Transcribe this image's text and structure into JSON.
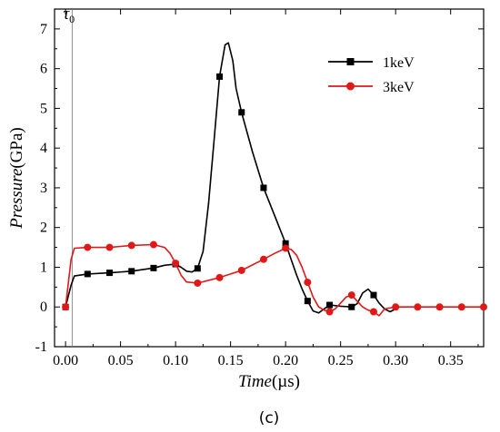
{
  "chart_data": {
    "type": "line",
    "title": "",
    "xlabel": "Time",
    "xlabel_unit": "(µs)",
    "ylabel": "Pressure",
    "ylabel_unit": "(GPa)",
    "panel_label": "(c)",
    "marker_label": "τ",
    "marker_label_sub": "0",
    "marker_x": 0.006,
    "xlim": [
      -0.01,
      0.38
    ],
    "ylim": [
      -1,
      7.5
    ],
    "xticks": [
      0.0,
      0.05,
      0.1,
      0.15,
      0.2,
      0.25,
      0.3,
      0.35
    ],
    "xtick_labels": [
      "0.00",
      "0.05",
      "0.10",
      "0.15",
      "0.20",
      "0.25",
      "0.30",
      "0.35"
    ],
    "yticks": [
      -1,
      0,
      1,
      2,
      3,
      4,
      5,
      6,
      7
    ],
    "ytick_labels": [
      "-1",
      "0",
      "1",
      "2",
      "3",
      "4",
      "5",
      "6",
      "7"
    ],
    "grid": false,
    "legend_position": "top-right",
    "series": [
      {
        "name": "1keV",
        "color": "#000000",
        "marker": "square",
        "line": [
          [
            0.0,
            0
          ],
          [
            0.005,
            0.55
          ],
          [
            0.008,
            0.78
          ],
          [
            0.02,
            0.83
          ],
          [
            0.04,
            0.86
          ],
          [
            0.06,
            0.9
          ],
          [
            0.08,
            0.98
          ],
          [
            0.09,
            1.05
          ],
          [
            0.1,
            1.08
          ],
          [
            0.105,
            1.0
          ],
          [
            0.11,
            0.9
          ],
          [
            0.115,
            0.88
          ],
          [
            0.12,
            0.97
          ],
          [
            0.125,
            1.4
          ],
          [
            0.13,
            2.6
          ],
          [
            0.135,
            4.2
          ],
          [
            0.14,
            5.8
          ],
          [
            0.145,
            6.6
          ],
          [
            0.148,
            6.65
          ],
          [
            0.152,
            6.2
          ],
          [
            0.155,
            5.5
          ],
          [
            0.16,
            4.9
          ],
          [
            0.17,
            3.9
          ],
          [
            0.18,
            3.0
          ],
          [
            0.19,
            2.3
          ],
          [
            0.2,
            1.6
          ],
          [
            0.205,
            1.2
          ],
          [
            0.21,
            0.8
          ],
          [
            0.215,
            0.45
          ],
          [
            0.22,
            0.15
          ],
          [
            0.225,
            -0.1
          ],
          [
            0.23,
            -0.15
          ],
          [
            0.235,
            -0.05
          ],
          [
            0.24,
            0.05
          ],
          [
            0.25,
            0.02
          ],
          [
            0.26,
            0.0
          ],
          [
            0.265,
            0.08
          ],
          [
            0.27,
            0.35
          ],
          [
            0.275,
            0.45
          ],
          [
            0.28,
            0.3
          ],
          [
            0.285,
            0.1
          ],
          [
            0.29,
            -0.05
          ],
          [
            0.295,
            -0.12
          ],
          [
            0.3,
            -0.05
          ]
        ],
        "points": [
          [
            0.0,
            0
          ],
          [
            0.02,
            0.83
          ],
          [
            0.04,
            0.86
          ],
          [
            0.06,
            0.9
          ],
          [
            0.08,
            0.98
          ],
          [
            0.1,
            1.08
          ],
          [
            0.12,
            0.97
          ],
          [
            0.14,
            5.8
          ],
          [
            0.16,
            4.9
          ],
          [
            0.18,
            3.0
          ],
          [
            0.2,
            1.6
          ],
          [
            0.22,
            0.15
          ],
          [
            0.24,
            0.05
          ],
          [
            0.26,
            0.0
          ],
          [
            0.28,
            0.3
          ]
        ]
      },
      {
        "name": "3keV",
        "color": "#e01818",
        "marker": "circle",
        "line": [
          [
            0.0,
            0
          ],
          [
            0.005,
            1.2
          ],
          [
            0.008,
            1.48
          ],
          [
            0.02,
            1.5
          ],
          [
            0.04,
            1.5
          ],
          [
            0.06,
            1.55
          ],
          [
            0.08,
            1.57
          ],
          [
            0.09,
            1.5
          ],
          [
            0.095,
            1.35
          ],
          [
            0.1,
            1.1
          ],
          [
            0.105,
            0.8
          ],
          [
            0.11,
            0.63
          ],
          [
            0.12,
            0.6
          ],
          [
            0.14,
            0.74
          ],
          [
            0.16,
            0.92
          ],
          [
            0.18,
            1.2
          ],
          [
            0.19,
            1.35
          ],
          [
            0.2,
            1.48
          ],
          [
            0.205,
            1.45
          ],
          [
            0.21,
            1.3
          ],
          [
            0.215,
            1.0
          ],
          [
            0.22,
            0.62
          ],
          [
            0.225,
            0.25
          ],
          [
            0.23,
            0.0
          ],
          [
            0.235,
            -0.08
          ],
          [
            0.24,
            -0.12
          ],
          [
            0.245,
            -0.05
          ],
          [
            0.25,
            0.1
          ],
          [
            0.255,
            0.25
          ],
          [
            0.26,
            0.3
          ],
          [
            0.265,
            0.15
          ],
          [
            0.27,
            0.0
          ],
          [
            0.275,
            -0.08
          ],
          [
            0.28,
            -0.12
          ],
          [
            0.285,
            -0.22
          ],
          [
            0.29,
            -0.05
          ],
          [
            0.3,
            0.0
          ],
          [
            0.38,
            0.0
          ]
        ],
        "points": [
          [
            0.0,
            0
          ],
          [
            0.02,
            1.5
          ],
          [
            0.04,
            1.5
          ],
          [
            0.06,
            1.55
          ],
          [
            0.08,
            1.57
          ],
          [
            0.1,
            1.1
          ],
          [
            0.12,
            0.6
          ],
          [
            0.14,
            0.74
          ],
          [
            0.16,
            0.92
          ],
          [
            0.18,
            1.2
          ],
          [
            0.2,
            1.48
          ],
          [
            0.22,
            0.62
          ],
          [
            0.24,
            -0.12
          ],
          [
            0.26,
            0.3
          ],
          [
            0.28,
            -0.12
          ],
          [
            0.3,
            0.0
          ],
          [
            0.32,
            0.0
          ],
          [
            0.34,
            0.0
          ],
          [
            0.36,
            0.0
          ],
          [
            0.38,
            0.0
          ]
        ]
      }
    ]
  }
}
